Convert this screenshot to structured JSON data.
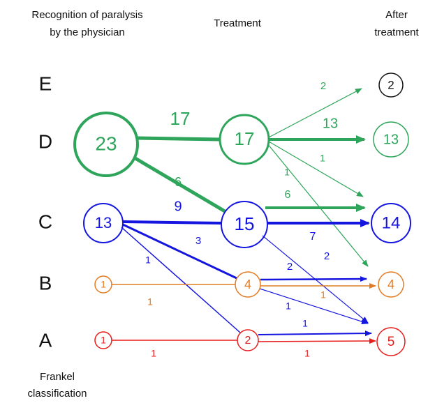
{
  "header": {
    "physician": [
      "Recognition of paralysis",
      "by the physician"
    ],
    "treatment": "Treatment",
    "after": [
      "After",
      "treatment"
    ]
  },
  "grades": [
    "E",
    "D",
    "C",
    "B",
    "A"
  ],
  "nodes": [
    "23",
    "17",
    "15",
    "13",
    "1",
    "4",
    "1",
    "2",
    "2",
    "13",
    "14",
    "4",
    "5"
  ],
  "edges": [
    "17",
    "6",
    "2",
    "13",
    "1",
    "1",
    "6",
    "9",
    "7",
    "2",
    "3",
    "1",
    "1",
    "1",
    "2",
    "1",
    "1",
    "1",
    "1"
  ],
  "footer": [
    "Frankel",
    "classification"
  ]
}
